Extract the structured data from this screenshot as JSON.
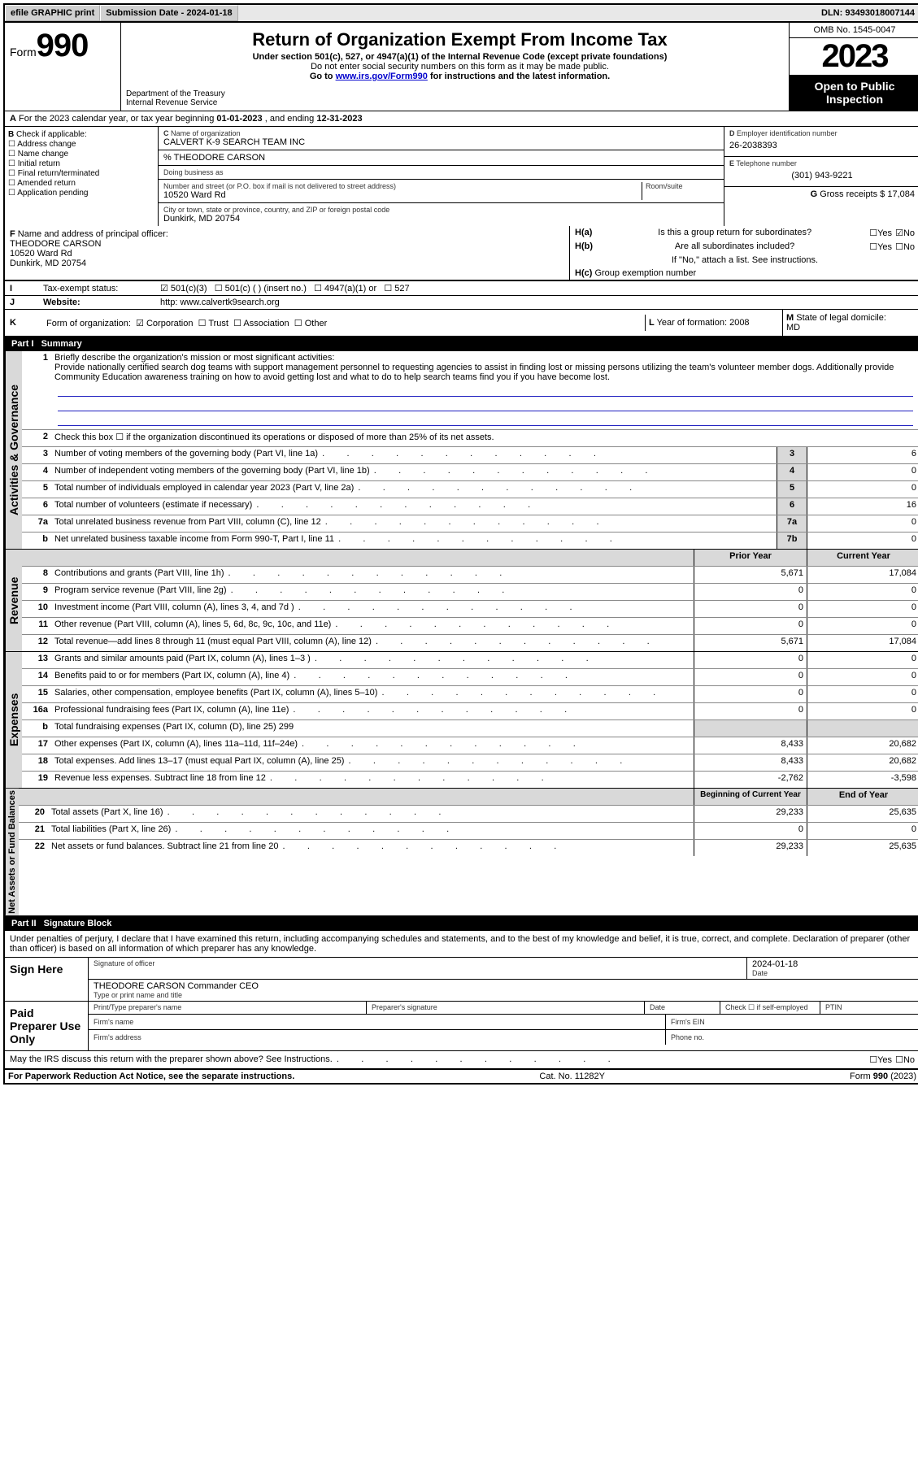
{
  "top": {
    "efile": "efile GRAPHIC print",
    "sub_lbl": "Submission Date - ",
    "sub_date": "2024-01-18",
    "dln_lbl": "DLN: ",
    "dln": "93493018007144"
  },
  "hdr": {
    "form_word": "Form",
    "form_num": "990",
    "dept": "Department of the Treasury",
    "irs": "Internal Revenue Service",
    "title": "Return of Organization Exempt From Income Tax",
    "sub1": "Under section 501(c), 527, or 4947(a)(1) of the Internal Revenue Code (except private foundations)",
    "sub2": "Do not enter social security numbers on this form as it may be made public.",
    "sub3_pre": "Go to ",
    "sub3_link": "www.irs.gov/Form990",
    "sub3_post": " for instructions and the latest information.",
    "omb": "OMB No. 1545-0047",
    "year": "2023",
    "open": "Open to Public Inspection"
  },
  "A": {
    "text_pre": "For the 2023 calendar year, or tax year beginning ",
    "begin": "01-01-2023",
    "mid": " , and ending ",
    "end": "12-31-2023"
  },
  "B": {
    "lbl": "Check if applicable:",
    "opts": [
      "Address change",
      "Name change",
      "Initial return",
      "Final return/terminated",
      "Amended return",
      "Application pending"
    ]
  },
  "C": {
    "name_lbl": "Name of organization",
    "name": "CALVERT K-9 SEARCH TEAM INC",
    "care_of": "% THEODORE CARSON",
    "dba_lbl": "Doing business as",
    "addr_lbl": "Number and street (or P.O. box if mail is not delivered to street address)",
    "room_lbl": "Room/suite",
    "addr": "10520 Ward Rd",
    "city_lbl": "City or town, state or province, country, and ZIP or foreign postal code",
    "city": "Dunkirk, MD  20754"
  },
  "D": {
    "lbl": "Employer identification number",
    "val": "26-2038393"
  },
  "E": {
    "lbl": "Telephone number",
    "val": "(301) 943-9221"
  },
  "G": {
    "lbl": "Gross receipts $ ",
    "val": "17,084"
  },
  "F": {
    "lbl": "Name and address of principal officer:",
    "name": "THEODORE CARSON",
    "addr1": "10520 Ward Rd",
    "addr2": "Dunkirk, MD  20754"
  },
  "H": {
    "a": "Is this a group return for subordinates?",
    "b": "Are all subordinates included?",
    "b2": "If \"No,\" attach a list. See instructions.",
    "c": "Group exemption number",
    "yes": "Yes",
    "no": "No"
  },
  "I": {
    "lbl": "Tax-exempt status:",
    "o1": "501(c)(3)",
    "o2": "501(c) (  ) (insert no.)",
    "o3": "4947(a)(1) or",
    "o4": "527"
  },
  "J": {
    "lbl": "Website:",
    "val": "http: www.calvertk9search.org"
  },
  "K": {
    "lbl": "Form of organization:",
    "c1": "Corporation",
    "c2": "Trust",
    "c3": "Association",
    "c4": "Other"
  },
  "L": {
    "lbl": "Year of formation: ",
    "val": "2008"
  },
  "M": {
    "lbl": "State of legal domicile:",
    "val": "MD"
  },
  "partI": {
    "hdr": "Part I",
    "title": "Summary",
    "q1_lbl": "Briefly describe the organization's mission or most significant activities:",
    "q1": "Provide nationally certified search dog teams with support management personnel to requesting agencies to assist in finding lost or missing persons utilizing the team's volunteer member dogs. Additionally provide Community Education awareness training on how to avoid getting lost and what to do to help search teams find you if you have become lost.",
    "q2": "Check this box ☐ if the organization discontinued its operations or disposed of more than 25% of its net assets.",
    "lines_gov": [
      {
        "n": "3",
        "t": "Number of voting members of the governing body (Part VI, line 1a)",
        "ref": "3",
        "v": "6"
      },
      {
        "n": "4",
        "t": "Number of independent voting members of the governing body (Part VI, line 1b)",
        "ref": "4",
        "v": "0"
      },
      {
        "n": "5",
        "t": "Total number of individuals employed in calendar year 2023 (Part V, line 2a)",
        "ref": "5",
        "v": "0"
      },
      {
        "n": "6",
        "t": "Total number of volunteers (estimate if necessary)",
        "ref": "6",
        "v": "16"
      },
      {
        "n": "7a",
        "t": "Total unrelated business revenue from Part VIII, column (C), line 12",
        "ref": "7a",
        "v": "0"
      },
      {
        "n": "b",
        "t": "Net unrelated business taxable income from Form 990-T, Part I, line 11",
        "ref": "7b",
        "v": "0"
      }
    ],
    "col_prior": "Prior Year",
    "col_curr": "Current Year",
    "lines_rev": [
      {
        "n": "8",
        "t": "Contributions and grants (Part VIII, line 1h)",
        "p": "5,671",
        "c": "17,084"
      },
      {
        "n": "9",
        "t": "Program service revenue (Part VIII, line 2g)",
        "p": "0",
        "c": "0"
      },
      {
        "n": "10",
        "t": "Investment income (Part VIII, column (A), lines 3, 4, and 7d )",
        "p": "0",
        "c": "0"
      },
      {
        "n": "11",
        "t": "Other revenue (Part VIII, column (A), lines 5, 6d, 8c, 9c, 10c, and 11e)",
        "p": "0",
        "c": "0"
      },
      {
        "n": "12",
        "t": "Total revenue—add lines 8 through 11 (must equal Part VIII, column (A), line 12)",
        "p": "5,671",
        "c": "17,084"
      }
    ],
    "lines_exp": [
      {
        "n": "13",
        "t": "Grants and similar amounts paid (Part IX, column (A), lines 1–3 )",
        "p": "0",
        "c": "0"
      },
      {
        "n": "14",
        "t": "Benefits paid to or for members (Part IX, column (A), line 4)",
        "p": "0",
        "c": "0"
      },
      {
        "n": "15",
        "t": "Salaries, other compensation, employee benefits (Part IX, column (A), lines 5–10)",
        "p": "0",
        "c": "0"
      },
      {
        "n": "16a",
        "t": "Professional fundraising fees (Part IX, column (A), line 11e)",
        "p": "0",
        "c": "0"
      },
      {
        "n": "b",
        "t": "Total fundraising expenses (Part IX, column (D), line 25) 299",
        "shade": true
      },
      {
        "n": "17",
        "t": "Other expenses (Part IX, column (A), lines 11a–11d, 11f–24e)",
        "p": "8,433",
        "c": "20,682"
      },
      {
        "n": "18",
        "t": "Total expenses. Add lines 13–17 (must equal Part IX, column (A), line 25)",
        "p": "8,433",
        "c": "20,682"
      },
      {
        "n": "19",
        "t": "Revenue less expenses. Subtract line 18 from line 12",
        "p": "-2,762",
        "c": "-3,598"
      }
    ],
    "col_beg": "Beginning of Current Year",
    "col_end": "End of Year",
    "lines_net": [
      {
        "n": "20",
        "t": "Total assets (Part X, line 16)",
        "p": "29,233",
        "c": "25,635"
      },
      {
        "n": "21",
        "t": "Total liabilities (Part X, line 26)",
        "p": "0",
        "c": "0"
      },
      {
        "n": "22",
        "t": "Net assets or fund balances. Subtract line 21 from line 20",
        "p": "29,233",
        "c": "25,635"
      }
    ],
    "v_gov": "Activities & Governance",
    "v_rev": "Revenue",
    "v_exp": "Expenses",
    "v_net": "Net Assets or Fund Balances"
  },
  "partII": {
    "hdr": "Part II",
    "title": "Signature Block",
    "decl": "Under penalties of perjury, I declare that I have examined this return, including accompanying schedules and statements, and to the best of my knowledge and belief, it is true, correct, and complete. Declaration of preparer (other than officer) is based on all information of which preparer has any knowledge."
  },
  "sign": {
    "here": "Sign Here",
    "sig_lbl": "Signature of officer",
    "date_lbl": "Date",
    "date": "2024-01-18",
    "name": "THEODORE CARSON Commander CEO",
    "name_lbl": "Type or print name and title"
  },
  "prep": {
    "lbl": "Paid Preparer Use Only",
    "c1": "Print/Type preparer's name",
    "c2": "Preparer's signature",
    "c3": "Date",
    "c4": "Check ☐ if self-employed",
    "c5": "PTIN",
    "firm_name": "Firm's name",
    "firm_ein": "Firm's EIN",
    "firm_addr": "Firm's address",
    "phone": "Phone no."
  },
  "discuss": {
    "q": "May the IRS discuss this return with the preparer shown above? See Instructions.",
    "yes": "Yes",
    "no": "No"
  },
  "foot": {
    "l": "For Paperwork Reduction Act Notice, see the separate instructions.",
    "m": "Cat. No. 11282Y",
    "r": "Form 990 (2023)"
  }
}
